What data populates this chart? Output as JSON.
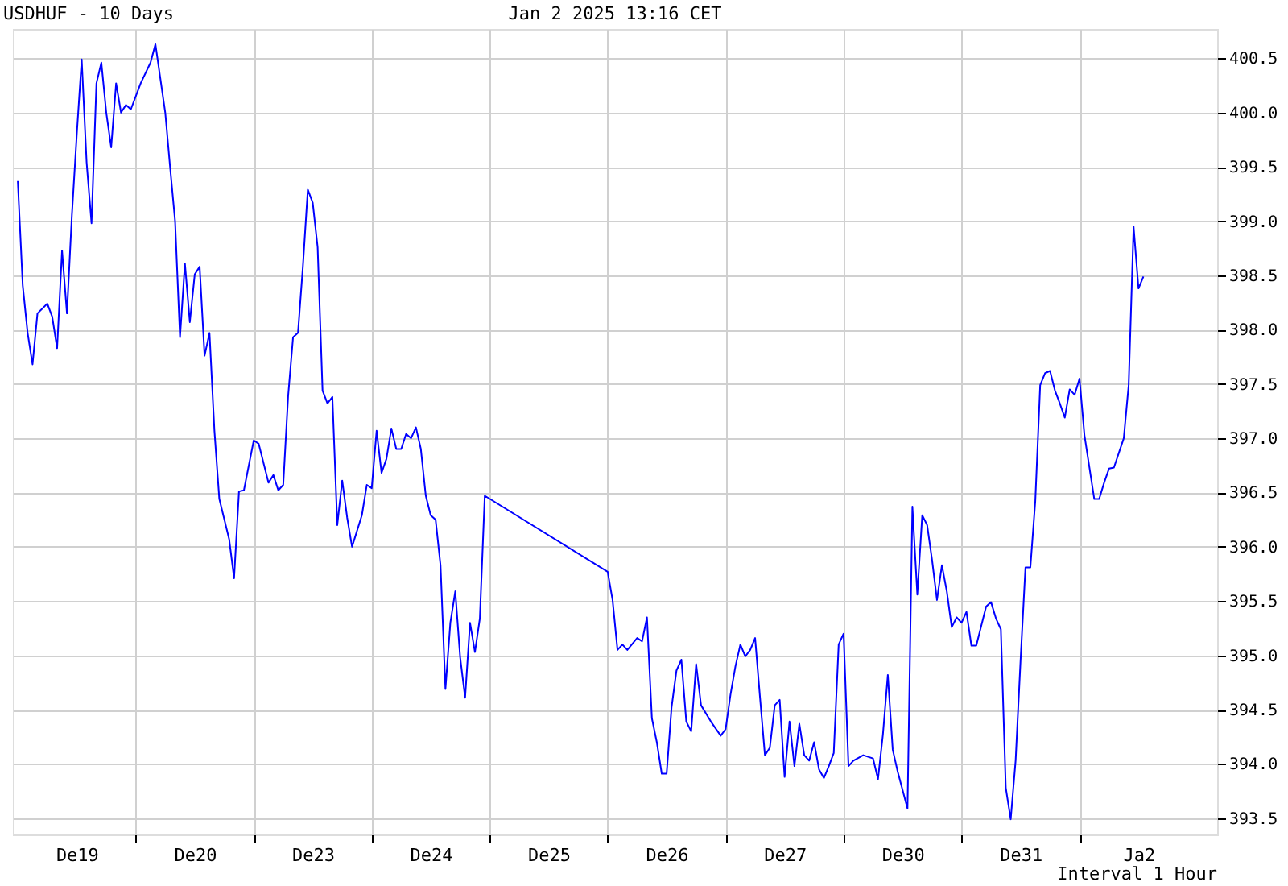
{
  "chart_data": {
    "type": "line",
    "title": "USDHUF - 10 Days",
    "annotations": [
      "Jan 2 2025 13:16 CET",
      "Interval 1 Hour"
    ],
    "categories": [
      null,
      null,
      null,
      null,
      null,
      null,
      null,
      null,
      null,
      null,
      null,
      null,
      "De19",
      null,
      null,
      null,
      null,
      null,
      null,
      null,
      null,
      null,
      null,
      null,
      null,
      null,
      null,
      null,
      null,
      null,
      null,
      null,
      null,
      null,
      null,
      null,
      "De20",
      null,
      null,
      null,
      null,
      null,
      null,
      null,
      null,
      null,
      null,
      null,
      null,
      null,
      null,
      null,
      null,
      null,
      null,
      null,
      null,
      null,
      null,
      null,
      "De23",
      null,
      null,
      null,
      null,
      null,
      null,
      null,
      null,
      null,
      null,
      null,
      null,
      null,
      null,
      null,
      null,
      null,
      null,
      null,
      null,
      null,
      null,
      null,
      "De24",
      null,
      null,
      null,
      null,
      null,
      null,
      null,
      null,
      null,
      null,
      null,
      null,
      null,
      null,
      null,
      null,
      null,
      null,
      null,
      null,
      null,
      null,
      null,
      "De25",
      null,
      null,
      null,
      null,
      null,
      null,
      null,
      null,
      null,
      null,
      null,
      null,
      null,
      null,
      null,
      null,
      null,
      null,
      null,
      null,
      null,
      null,
      null,
      "De26",
      null,
      null,
      null,
      null,
      null,
      null,
      null,
      null,
      null,
      null,
      null,
      null,
      null,
      null,
      null,
      null,
      null,
      null,
      null,
      null,
      null,
      null,
      null,
      "De27",
      null,
      null,
      null,
      null,
      null,
      null,
      null,
      null,
      null,
      null,
      null,
      null,
      null,
      null,
      null,
      null,
      null,
      null,
      null,
      null,
      null,
      null,
      null,
      "De30",
      null,
      null,
      null,
      null,
      null,
      null,
      null,
      null,
      null,
      null,
      null,
      null,
      null,
      null,
      null,
      null,
      null,
      null,
      null,
      null,
      null,
      null,
      null,
      "De31",
      null,
      null,
      null,
      null,
      null,
      null,
      null,
      null,
      null,
      null,
      null,
      null,
      null,
      null,
      null,
      null,
      null,
      null,
      null,
      null,
      null,
      null,
      null,
      "Ja2",
      null,
      null,
      null,
      null,
      null,
      null,
      null,
      null,
      null,
      null,
      null,
      null,
      null,
      null,
      null
    ],
    "series": [
      {
        "color": "#0000ff",
        "values": [
          399.37,
          398.41,
          397.97,
          397.68,
          398.15,
          null,
          398.24,
          398.12,
          397.83,
          398.73,
          398.15,
          399.05,
          399.8,
          400.49,
          399.54,
          398.98,
          400.27,
          400.46,
          400.0,
          399.68,
          400.27,
          400.0,
          400.07,
          400.03,
          null,
          400.27,
          null,
          400.46,
          400.63,
          null,
          400.0,
          399.49,
          399.0,
          397.93,
          398.61,
          398.07,
          398.51,
          398.58,
          397.76,
          397.97,
          397.07,
          396.44,
          null,
          396.07,
          395.71,
          396.51,
          396.52,
          null,
          396.98,
          396.95,
          null,
          396.59,
          396.66,
          396.52,
          396.57,
          397.39,
          397.93,
          397.97,
          398.58,
          399.29,
          399.17,
          398.76,
          397.44,
          397.32,
          397.38,
          396.2,
          396.61,
          396.27,
          396.0,
          null,
          396.29,
          396.57,
          396.54,
          397.07,
          396.68,
          396.81,
          397.09,
          396.9,
          396.9,
          397.04,
          397.0,
          397.1,
          396.9,
          396.47,
          396.29,
          396.25,
          395.83,
          394.69,
          395.3,
          395.59,
          394.98,
          394.61,
          395.3,
          395.03,
          395.34,
          396.47,
          null,
          null,
          null,
          null,
          null,
          null,
          null,
          null,
          null,
          null,
          null,
          null,
          null,
          null,
          null,
          null,
          null,
          null,
          null,
          null,
          null,
          null,
          null,
          null,
          395.77,
          395.51,
          395.05,
          395.1,
          395.05,
          null,
          395.16,
          395.13,
          395.35,
          394.42,
          394.2,
          393.91,
          393.91,
          394.52,
          394.86,
          394.96,
          394.39,
          394.3,
          394.92,
          394.54,
          null,
          394.39,
          null,
          394.26,
          394.32,
          394.64,
          394.9,
          395.1,
          394.99,
          395.05,
          395.16,
          394.61,
          394.08,
          394.15,
          394.54,
          394.59,
          393.88,
          394.39,
          393.98,
          394.37,
          394.08,
          394.03,
          394.2,
          393.95,
          393.87,
          393.98,
          394.1,
          395.1,
          395.2,
          393.98,
          394.03,
          null,
          394.08,
          null,
          394.05,
          393.86,
          394.27,
          394.82,
          394.13,
          393.93,
          393.76,
          393.59,
          396.37,
          395.56,
          396.29,
          396.2,
          395.88,
          395.51,
          395.83,
          395.59,
          395.26,
          395.35,
          395.3,
          395.4,
          395.09,
          395.09,
          null,
          395.45,
          395.49,
          395.34,
          395.24,
          393.78,
          393.49,
          394.03,
          394.95,
          395.81,
          395.81,
          396.42,
          397.49,
          397.6,
          397.62,
          397.44,
          397.32,
          397.19,
          397.45,
          397.4,
          397.55,
          397.03,
          null,
          396.44,
          396.44,
          396.59,
          396.72,
          396.73,
          null,
          397.0,
          397.49,
          398.95,
          398.38,
          398.49,
          null,
          null,
          null,
          null,
          null,
          null,
          null,
          null,
          null,
          null,
          null,
          null,
          null,
          null
        ]
      }
    ],
    "ylim": [
      393.35,
      400.77
    ],
    "yticks": [
      393.5,
      {
        "value": 394,
        "label": "394.0"
      },
      394.5,
      {
        "value": 395,
        "label": "395.0"
      },
      395.5,
      {
        "value": 396,
        "label": "396.0"
      },
      396.5,
      {
        "value": 397,
        "label": "397.0"
      },
      397.5,
      {
        "value": 398,
        "label": "398.0"
      },
      398.5,
      {
        "value": 399,
        "label": "399.0"
      },
      399.5,
      {
        "value": 400,
        "label": "400.0"
      },
      400.5
    ],
    "grid": true,
    "line_style": "solid",
    "marker": "none"
  }
}
